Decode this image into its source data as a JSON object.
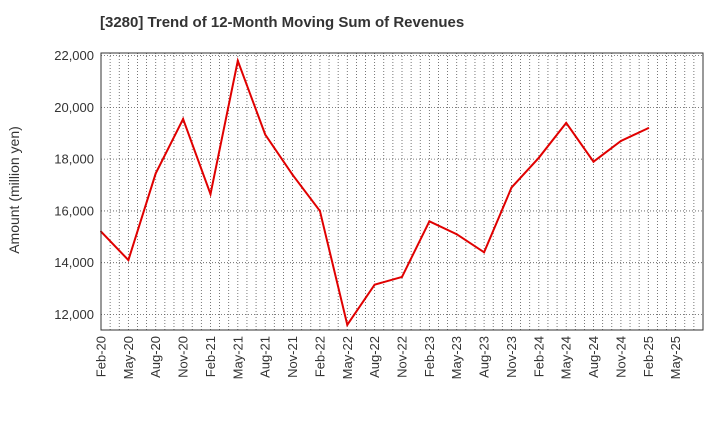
{
  "chart_data": {
    "type": "line",
    "title": "[3280]  Trend of 12-Month Moving Sum of Revenues",
    "xlabel": "",
    "ylabel": "Amount (million yen)",
    "x_tick_labels": [
      "Feb-20",
      "May-20",
      "Aug-20",
      "Nov-20",
      "Feb-21",
      "May-21",
      "Aug-21",
      "Nov-21",
      "Feb-22",
      "May-22",
      "Aug-22",
      "Nov-22",
      "Feb-23",
      "May-23",
      "Aug-23",
      "Nov-23",
      "Feb-24",
      "May-24",
      "Aug-24",
      "Nov-24",
      "Feb-25",
      "May-25"
    ],
    "y_tick_labels": [
      "12,000",
      "14,000",
      "16,000",
      "18,000",
      "20,000",
      "22,000"
    ],
    "ylim": [
      11400,
      22100
    ],
    "y_ticks": [
      12000,
      14000,
      16000,
      18000,
      20000,
      22000
    ],
    "grid": true,
    "series": [
      {
        "name": "",
        "color": "#e00000",
        "x": [
          "Feb-20",
          "May-20",
          "Aug-20",
          "Nov-20",
          "Feb-21",
          "May-21",
          "Aug-21",
          "Nov-21",
          "Feb-22",
          "May-22",
          "Aug-22",
          "Nov-22",
          "Feb-23",
          "May-23",
          "Aug-23",
          "Nov-23",
          "Feb-24",
          "May-24",
          "Aug-24",
          "Nov-24",
          "Feb-25"
        ],
        "values": [
          15200,
          14100,
          17450,
          19550,
          16650,
          21800,
          18950,
          17400,
          16000,
          11600,
          13150,
          13450,
          15600,
          15100,
          14400,
          16900,
          18050,
          19400,
          17900,
          18700,
          19200
        ]
      }
    ]
  }
}
